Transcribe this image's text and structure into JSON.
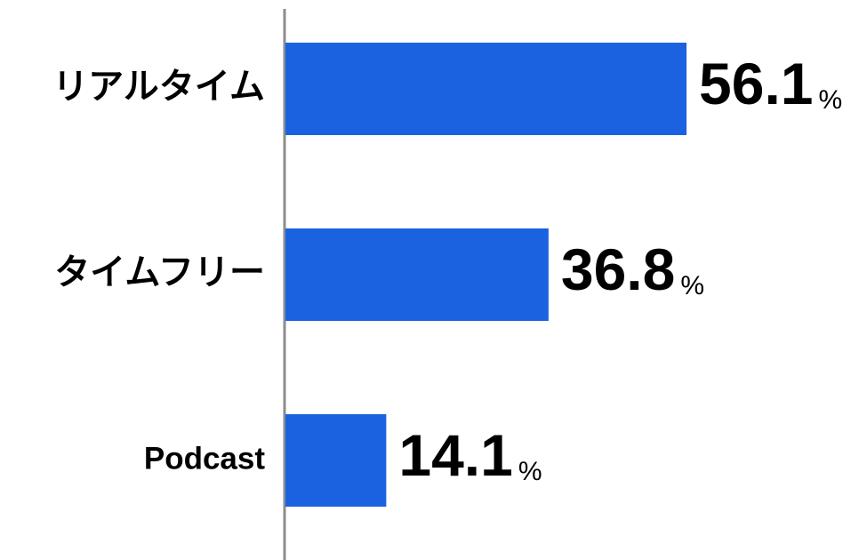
{
  "chart_data": {
    "type": "bar",
    "orientation": "horizontal",
    "categories": [
      "リアルタイム",
      "タイムフリー",
      "Podcast"
    ],
    "values": [
      56.1,
      36.8,
      14.1
    ],
    "value_unit": "%",
    "color": "#1b62e0"
  }
}
